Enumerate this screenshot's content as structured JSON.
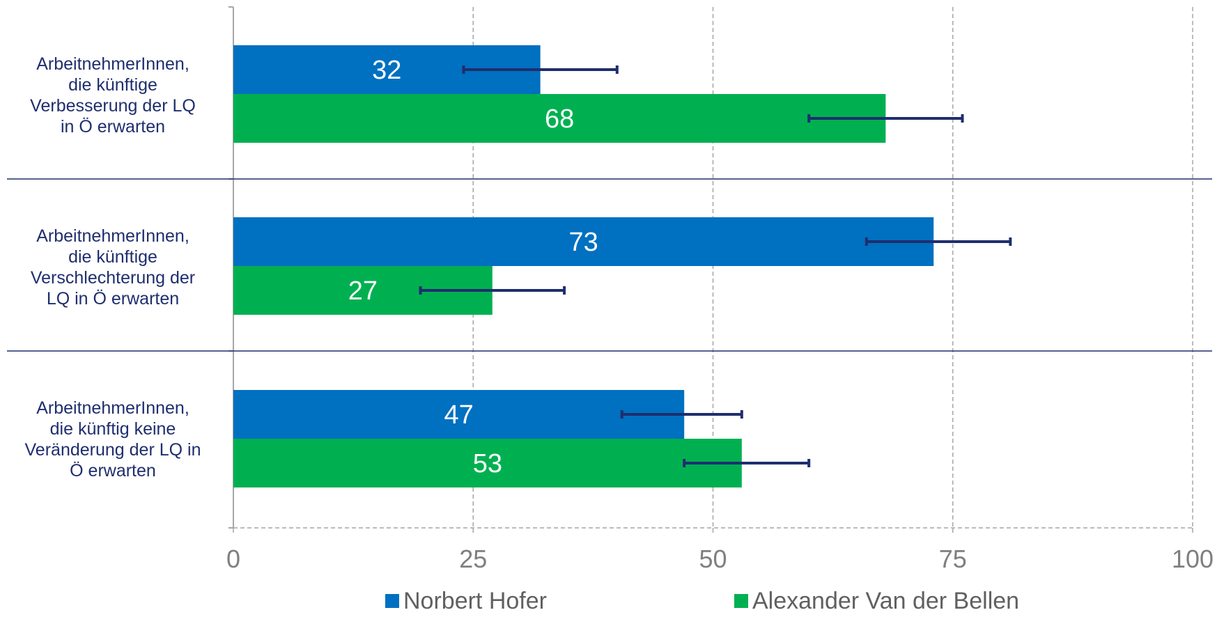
{
  "chart_data": {
    "type": "bar",
    "orientation": "horizontal",
    "categories": [
      "ArbeitnehmerInnen, die künftige Verbesserung der LQ in Ö erwarten",
      "ArbeitnehmerInnen, die künftige Verschlechterung der LQ in Ö erwarten",
      "ArbeitnehmerInnen, die künftig keine Veränderung der LQ in Ö erwarten"
    ],
    "category_lines": [
      [
        "ArbeitnehmerInnen,",
        "die künftige",
        "Verbesserung der LQ",
        "in Ö erwarten"
      ],
      [
        "ArbeitnehmerInnen,",
        "die künftige",
        "Verschlechterung der",
        "LQ in Ö erwarten"
      ],
      [
        "ArbeitnehmerInnen,",
        "die künftig keine",
        "Veränderung der LQ in",
        "Ö erwarten"
      ]
    ],
    "series": [
      {
        "name": "Norbert Hofer",
        "color": "#0070c0",
        "values": [
          32,
          73,
          47
        ],
        "error_low": [
          24,
          66,
          40.5
        ],
        "error_high": [
          40,
          81,
          53
        ]
      },
      {
        "name": "Alexander Van der Bellen",
        "color": "#00b050",
        "values": [
          68,
          27,
          53
        ],
        "error_low": [
          60,
          19.5,
          47
        ],
        "error_high": [
          76,
          34.5,
          60
        ]
      }
    ],
    "xlim": [
      0,
      100
    ],
    "x_ticks": [
      "0",
      "25",
      "50",
      "75",
      "100"
    ],
    "grid": true,
    "legend_position": "bottom",
    "title": "",
    "xlabel": "",
    "ylabel": ""
  }
}
